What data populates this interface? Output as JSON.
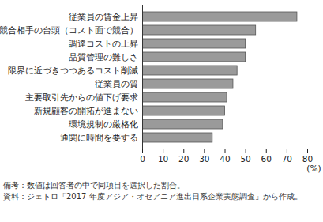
{
  "chart_data": {
    "type": "bar",
    "orientation": "horizontal",
    "categories": [
      "従業員の賃金上昇",
      "競合相手の台頭（コスト面で競合）",
      "調達コストの上昇",
      "品質管理の難しさ",
      "限界に近づきつつあるコスト削減",
      "従業員の質",
      "主要取引先からの値下げ要求",
      "新規顧客の開拓が進まない",
      "環境規制の厳格化",
      "通関に時間を要する"
    ],
    "values": [
      75,
      55,
      50,
      50,
      46,
      44,
      41,
      40,
      39,
      34
    ],
    "color": "#9a9a9a",
    "x_label": "(%)",
    "xlim": [
      0,
      80
    ],
    "xticks": [
      0,
      10,
      20,
      30,
      40,
      50,
      60,
      70,
      80
    ],
    "grid": false,
    "notes": [
      "備考：数値は回答者の中で同項目を選択した割合。",
      "資料：ジェトロ「2017 年度アジア・オセアニア進出日系企業実態調査」から作成。"
    ]
  }
}
